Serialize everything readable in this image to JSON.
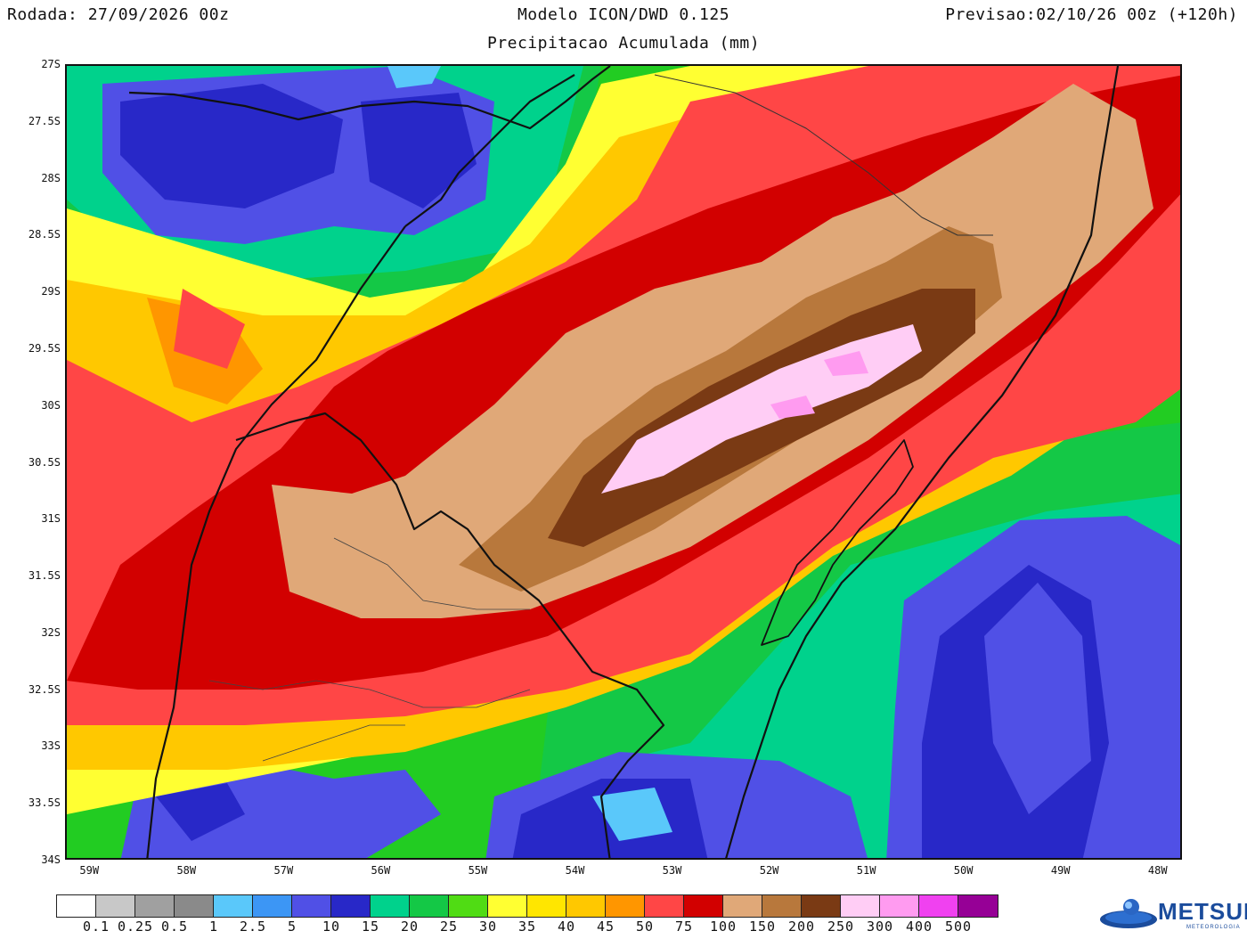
{
  "header": {
    "run": "Rodada: 27/09/2026 00z",
    "model": "Modelo ICON/DWD 0.125",
    "valid": "Previsao:02/10/26 00z (+120h)",
    "product": "Precipitacao Acumulada (mm)"
  },
  "map": {
    "lat_labels": [
      "27S",
      "27.5S",
      "28S",
      "28.5S",
      "29S",
      "29.5S",
      "30S",
      "30.5S",
      "31S",
      "31.5S",
      "32S",
      "32.5S",
      "33S",
      "33.5S",
      "34S"
    ],
    "lon_labels": [
      "59W",
      "58W",
      "57W",
      "56W",
      "55W",
      "54W",
      "53W",
      "52W",
      "51W",
      "50W",
      "49W",
      "48W"
    ],
    "lat_range": [
      -34,
      -27
    ],
    "lon_range": [
      -59.25,
      -47.75
    ],
    "background_colour": "#22cc22"
  },
  "colorbar": {
    "colors": [
      "#ffffff",
      "#c8c8c8",
      "#a0a0a0",
      "#8a8a8a",
      "#5ac8fa",
      "#3c96f5",
      "#5050e6",
      "#2828c8",
      "#00d28c",
      "#14c846",
      "#50dc14",
      "#ffff32",
      "#ffe600",
      "#ffc800",
      "#ff9600",
      "#ff4646",
      "#d20000",
      "#e0a878",
      "#b8783c",
      "#7a3a14",
      "#ffcdf5",
      "#ff9bf0",
      "#f041f0",
      "#960096"
    ],
    "labels": [
      "0.1",
      "0.25",
      "0.5",
      "1",
      "2.5",
      "5",
      "10",
      "15",
      "20",
      "25",
      "30",
      "35",
      "40",
      "45",
      "50",
      "75",
      "100",
      "150",
      "200",
      "250",
      "300",
      "400",
      "500"
    ]
  },
  "logo": {
    "name": "METSUL",
    "subtitle": "METEOROLOGIA"
  }
}
